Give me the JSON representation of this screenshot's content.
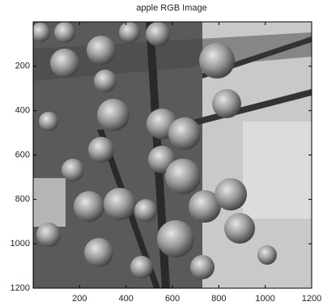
{
  "chart_data": {
    "type": "image",
    "title": "apple RGB Image",
    "xlim": [
      0,
      1200
    ],
    "ylim": [
      0,
      1200
    ],
    "y_reversed": true,
    "xticks": [
      200,
      400,
      600,
      800,
      1000,
      1200
    ],
    "yticks": [
      200,
      400,
      600,
      800,
      1000,
      1200
    ]
  }
}
